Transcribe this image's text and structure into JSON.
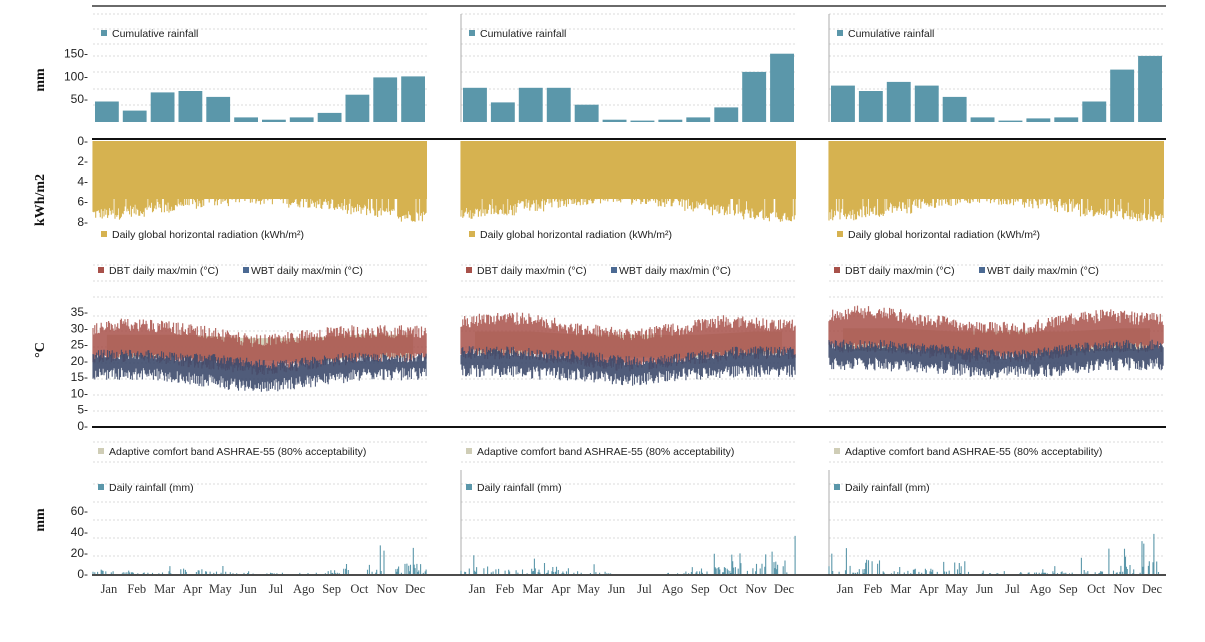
{
  "colors": {
    "rain_bar": "#5b97aa",
    "radiation": "#d6b250",
    "dbt": "#a8514a",
    "wbt": "#3d4a6b",
    "comfort": "#cfcdb6",
    "grid": "#cfcfcf",
    "axis": "#222222"
  },
  "units": {
    "rain_cum": "mm",
    "radiation": "kWh/m2",
    "temperature": "°C",
    "rain_daily": "mm"
  },
  "legends": {
    "cum_rain": "Cumulative rainfall",
    "radiation": "Daily global horizontal radiation (kWh/m²)",
    "dbt": "DBT daily max/min (°C)",
    "wbt": "WBT daily max/min (°C)",
    "comfort": "Adaptive comfort band ASHRAE-55 (80% acceptability)",
    "daily_rain": "Daily rainfall (mm)"
  },
  "chart_data": [
    {
      "type": "bar",
      "title": "",
      "months": [
        "Jan",
        "Feb",
        "Mar",
        "Apr",
        "May",
        "Jun",
        "Jul",
        "Ago",
        "Sep",
        "Oct",
        "Nov",
        "Dec"
      ],
      "cumulative_rainfall_mm": [
        45,
        25,
        65,
        68,
        55,
        10,
        5,
        10,
        20,
        60,
        98,
        100
      ],
      "rain_axis": {
        "ylabel": "mm",
        "ylim": [
          0,
          180
        ],
        "ticks": [
          50,
          100,
          150
        ]
      },
      "radiation_axis": {
        "ylabel": "kWh/m2",
        "ylim": [
          0,
          9
        ],
        "ticks": [
          0,
          2,
          4,
          6,
          8
        ],
        "inverted": true
      },
      "radiation_typical_kwh_m2": [
        7.8,
        7.5,
        7.2,
        6.8,
        6.5,
        6.2,
        6.3,
        6.6,
        7.0,
        7.4,
        7.8,
        8.0
      ],
      "temperature_axis": {
        "ylabel": "°C",
        "ylim": [
          0,
          35
        ],
        "ticks": [
          0,
          5,
          10,
          15,
          20,
          25,
          30,
          35
        ]
      },
      "dbt_max_c": [
        30,
        31,
        31,
        30,
        29,
        27,
        26,
        27,
        28,
        29,
        29,
        29
      ],
      "dbt_min_c": [
        21,
        21,
        21,
        20,
        19,
        18,
        17,
        18,
        19,
        20,
        21,
        21
      ],
      "wbt_max_c": [
        22,
        22,
        22,
        21,
        21,
        20,
        19,
        19,
        20,
        21,
        21,
        21
      ],
      "wbt_min_c": [
        16,
        16,
        16,
        15,
        14,
        13,
        12,
        13,
        14,
        15,
        16,
        16
      ],
      "comfort_band_c": [
        [
          21,
          28
        ],
        [
          21,
          28
        ],
        [
          21,
          28
        ],
        [
          21,
          28
        ],
        [
          20,
          27.5
        ],
        [
          20,
          27
        ],
        [
          20,
          27
        ],
        [
          20,
          27
        ],
        [
          20,
          27.5
        ],
        [
          21,
          28
        ],
        [
          21,
          28
        ],
        [
          21,
          28
        ]
      ],
      "daily_rain_axis": {
        "ylabel": "mm",
        "ylim": [
          0,
          80
        ],
        "ticks": [
          0,
          20,
          40,
          60
        ]
      },
      "daily_rain_peak_mm": [
        12,
        5,
        8,
        15,
        8,
        3,
        2,
        3,
        5,
        28,
        30,
        30
      ]
    },
    {
      "type": "bar",
      "title": "",
      "months": [
        "Jan",
        "Feb",
        "Mar",
        "Apr",
        "May",
        "Jun",
        "Jul",
        "Ago",
        "Sep",
        "Oct",
        "Nov",
        "Dec"
      ],
      "cumulative_rainfall_mm": [
        75,
        43,
        75,
        75,
        38,
        5,
        3,
        5,
        10,
        32,
        110,
        150
      ],
      "rain_axis": {
        "ylabel": "mm",
        "ylim": [
          0,
          180
        ],
        "ticks": [
          50,
          100,
          150
        ]
      },
      "radiation_axis": {
        "ylabel": "kWh/m2",
        "ylim": [
          0,
          9
        ],
        "ticks": [
          0,
          2,
          4,
          6,
          8
        ],
        "inverted": true
      },
      "radiation_typical_kwh_m2": [
        7.8,
        7.4,
        7.0,
        6.6,
        6.4,
        6.1,
        6.3,
        6.6,
        7.0,
        7.4,
        7.8,
        8.0
      ],
      "temperature_axis": {
        "ylabel": "°C",
        "ylim": [
          0,
          35
        ],
        "ticks": [
          0,
          5,
          10,
          15,
          20,
          25,
          30,
          35
        ]
      },
      "dbt_max_c": [
        32,
        33,
        33,
        32,
        30,
        29,
        28,
        29,
        30,
        32,
        32,
        31
      ],
      "dbt_min_c": [
        22,
        22,
        22,
        21,
        20,
        19,
        18,
        19,
        20,
        21,
        22,
        22
      ],
      "wbt_max_c": [
        23,
        23,
        23,
        22,
        22,
        21,
        20,
        20,
        21,
        22,
        23,
        23
      ],
      "wbt_min_c": [
        17,
        17,
        17,
        16,
        16,
        15,
        14,
        15,
        16,
        16,
        17,
        17
      ],
      "comfort_band_c": [
        [
          22,
          29
        ],
        [
          22,
          29
        ],
        [
          22,
          29
        ],
        [
          22,
          28.5
        ],
        [
          21,
          28
        ],
        [
          21,
          28
        ],
        [
          21,
          28
        ],
        [
          21,
          28
        ],
        [
          21,
          28
        ],
        [
          22,
          28.5
        ],
        [
          22,
          29
        ],
        [
          22,
          29
        ]
      ],
      "daily_rain_axis": {
        "ylabel": "mm",
        "ylim": [
          0,
          80
        ],
        "ticks": [
          0,
          20,
          40,
          60
        ]
      },
      "daily_rain_peak_mm": [
        22,
        15,
        16,
        20,
        10,
        3,
        2,
        4,
        8,
        20,
        30,
        38
      ]
    },
    {
      "type": "bar",
      "title": "",
      "months": [
        "Jan",
        "Feb",
        "Mar",
        "Apr",
        "May",
        "Jun",
        "Jul",
        "Ago",
        "Sep",
        "Oct",
        "Nov",
        "Dec"
      ],
      "cumulative_rainfall_mm": [
        80,
        68,
        88,
        80,
        55,
        10,
        3,
        8,
        10,
        45,
        115,
        145
      ],
      "rain_axis": {
        "ylabel": "mm",
        "ylim": [
          0,
          180
        ],
        "ticks": [
          50,
          100,
          150
        ]
      },
      "radiation_axis": {
        "ylabel": "kWh/m2",
        "ylim": [
          0,
          9
        ],
        "ticks": [
          0,
          2,
          4,
          6,
          8
        ],
        "inverted": true
      },
      "radiation_typical_kwh_m2": [
        7.9,
        7.6,
        7.2,
        6.8,
        6.5,
        6.2,
        6.4,
        6.7,
        7.1,
        7.5,
        7.9,
        8.1
      ],
      "temperature_axis": {
        "ylabel": "°C",
        "ylim": [
          0,
          35
        ],
        "ticks": [
          0,
          5,
          10,
          15,
          20,
          25,
          30,
          35
        ]
      },
      "dbt_max_c": [
        34,
        35,
        35,
        33,
        32,
        30,
        30,
        30,
        32,
        33,
        34,
        33
      ],
      "dbt_min_c": [
        24,
        24,
        24,
        23,
        22,
        21,
        21,
        21,
        22,
        23,
        24,
        24
      ],
      "wbt_max_c": [
        25,
        25,
        25,
        24,
        24,
        23,
        22,
        22,
        23,
        24,
        25,
        25
      ],
      "wbt_min_c": [
        19,
        19,
        19,
        18,
        18,
        17,
        16,
        17,
        17,
        18,
        19,
        19
      ],
      "comfort_band_c": [
        [
          23,
          30
        ],
        [
          23,
          30
        ],
        [
          23,
          30
        ],
        [
          23,
          29.5
        ],
        [
          22,
          29
        ],
        [
          22,
          29
        ],
        [
          22,
          29
        ],
        [
          22,
          29
        ],
        [
          22,
          29
        ],
        [
          23,
          29.5
        ],
        [
          23,
          30
        ],
        [
          23,
          30
        ]
      ],
      "daily_rain_axis": {
        "ylabel": "mm",
        "ylim": [
          0,
          80
        ],
        "ticks": [
          0,
          20,
          40,
          60
        ]
      },
      "daily_rain_peak_mm": [
        25,
        15,
        12,
        16,
        14,
        4,
        3,
        5,
        8,
        18,
        28,
        40
      ]
    }
  ]
}
